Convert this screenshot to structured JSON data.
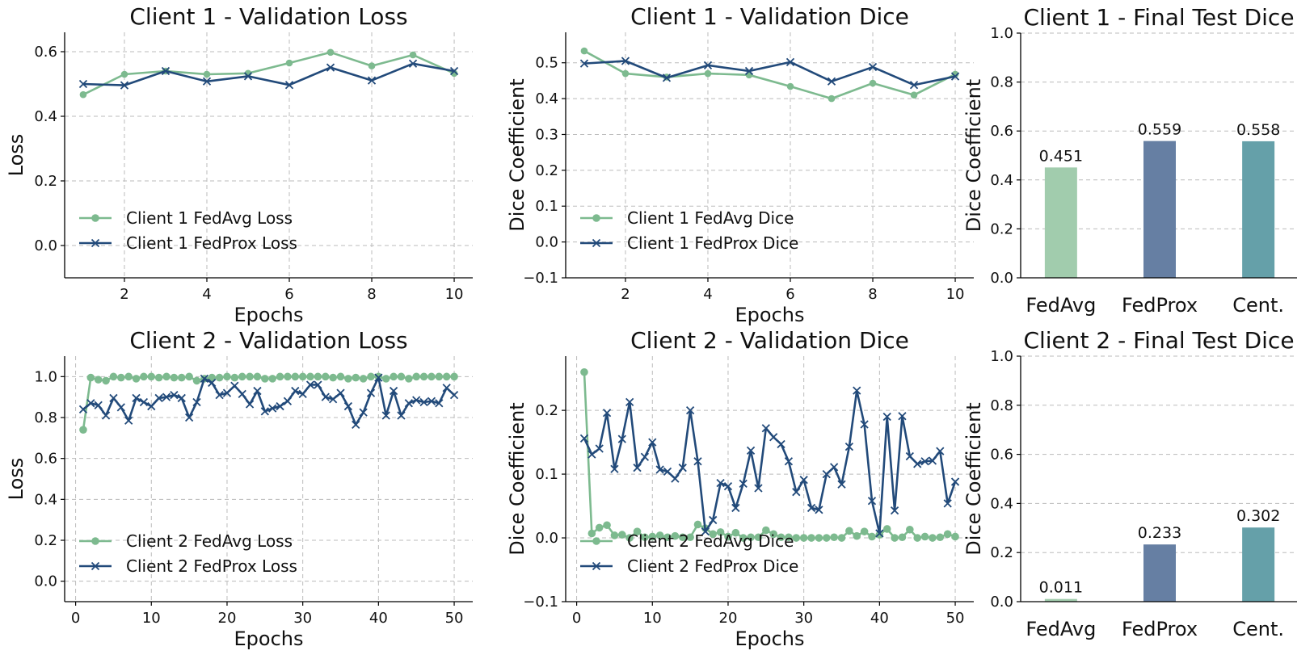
{
  "chart_data": [
    {
      "type": "line",
      "title": "Client 1 - Validation Loss",
      "xlabel": "Epochs",
      "ylabel": "Loss",
      "xlim": [
        0.55,
        10.45
      ],
      "ylim": [
        -0.1,
        0.66
      ],
      "xticks": [
        2,
        4,
        6,
        8,
        10
      ],
      "yticks": [
        0.0,
        0.2,
        0.4,
        0.6
      ],
      "ytick_decimals": 1,
      "legend_position": "lower-left",
      "x": [
        1,
        2,
        3,
        4,
        5,
        6,
        7,
        8,
        9,
        10
      ],
      "series": [
        {
          "name": "Client 1 FedAvg Loss",
          "color": "#7dba8f",
          "marker": "circle",
          "values": [
            0.467,
            0.53,
            0.54,
            0.53,
            0.533,
            0.565,
            0.598,
            0.556,
            0.59,
            0.533
          ]
        },
        {
          "name": "Client 1 FedProx Loss",
          "color": "#224a7a",
          "marker": "x",
          "values": [
            0.5,
            0.496,
            0.54,
            0.508,
            0.524,
            0.497,
            0.551,
            0.511,
            0.563,
            0.54
          ]
        }
      ]
    },
    {
      "type": "line",
      "title": "Client 1 - Validation Dice",
      "xlabel": "Epochs",
      "ylabel": "Dice Coefficient",
      "xlim": [
        0.55,
        10.45
      ],
      "ylim": [
        -0.1,
        0.585
      ],
      "xticks": [
        2,
        4,
        6,
        8,
        10
      ],
      "yticks": [
        -0.1,
        0.0,
        0.1,
        0.2,
        0.3,
        0.4,
        0.5
      ],
      "ytick_decimals": 1,
      "legend_position": "lower-left",
      "x": [
        1,
        2,
        3,
        4,
        5,
        6,
        7,
        8,
        9,
        10
      ],
      "series": [
        {
          "name": "Client 1 FedAvg Dice",
          "color": "#7dba8f",
          "marker": "circle",
          "values": [
            0.533,
            0.47,
            0.46,
            0.47,
            0.466,
            0.434,
            0.4,
            0.443,
            0.41,
            0.468
          ]
        },
        {
          "name": "Client 1 FedProx Dice",
          "color": "#224a7a",
          "marker": "x",
          "values": [
            0.498,
            0.505,
            0.458,
            0.493,
            0.477,
            0.502,
            0.448,
            0.488,
            0.438,
            0.462
          ]
        }
      ]
    },
    {
      "type": "bar",
      "title": "Client 1 - Final Test Dice",
      "xlabel": "",
      "ylabel": "Dice Coefficient",
      "ylim": [
        0,
        1.0
      ],
      "yticks": [
        0.0,
        0.2,
        0.4,
        0.6,
        0.8,
        1.0
      ],
      "ytick_decimals": 1,
      "categories": [
        "FedAvg",
        "FedProx",
        "Cent."
      ],
      "values": [
        0.451,
        0.559,
        0.558
      ],
      "value_labels": [
        "0.451",
        "0.559",
        "0.558"
      ],
      "colors": [
        "#a1ccad",
        "#667fa3",
        "#65a0a9"
      ]
    },
    {
      "type": "line",
      "title": "Client 2 - Validation Loss",
      "xlabel": "Epochs",
      "ylabel": "Loss",
      "xlim": [
        -1.45,
        52.45
      ],
      "ylim": [
        -0.1,
        1.1
      ],
      "xticks": [
        0,
        10,
        20,
        30,
        40,
        50
      ],
      "yticks": [
        0.0,
        0.2,
        0.4,
        0.6,
        0.8,
        1.0
      ],
      "ytick_decimals": 1,
      "legend_position": "lower-left",
      "x": [
        1,
        2,
        3,
        4,
        5,
        6,
        7,
        8,
        9,
        10,
        11,
        12,
        13,
        14,
        15,
        16,
        17,
        18,
        19,
        20,
        21,
        22,
        23,
        24,
        25,
        26,
        27,
        28,
        29,
        30,
        31,
        32,
        33,
        34,
        35,
        36,
        37,
        38,
        39,
        40,
        41,
        42,
        43,
        44,
        45,
        46,
        47,
        48,
        49,
        50
      ],
      "series": [
        {
          "name": "Client 2 FedAvg Loss",
          "color": "#7dba8f",
          "marker": "circle",
          "values": [
            0.74,
            0.995,
            0.985,
            0.98,
            1.0,
            0.995,
            1.0,
            0.99,
            1.0,
            1.0,
            0.995,
            1.0,
            0.995,
            0.995,
            1.0,
            0.98,
            0.99,
            0.995,
            0.995,
            1.0,
            0.995,
            1.0,
            1.0,
            1.0,
            0.99,
            0.99,
            1.0,
            1.0,
            1.0,
            1.0,
            1.0,
            1.0,
            1.0,
            0.995,
            1.0,
            0.99,
            0.995,
            0.99,
            1.0,
            1.0,
            0.99,
            1.0,
            1.0,
            0.99,
            1.0,
            1.0,
            1.0,
            1.0,
            1.0,
            1.0
          ]
        },
        {
          "name": "Client 2 FedProx Loss",
          "color": "#224a7a",
          "marker": "x",
          "values": [
            0.84,
            0.87,
            0.86,
            0.81,
            0.895,
            0.85,
            0.785,
            0.895,
            0.875,
            0.855,
            0.895,
            0.9,
            0.91,
            0.895,
            0.8,
            0.875,
            0.99,
            0.97,
            0.91,
            0.92,
            0.955,
            0.915,
            0.865,
            0.93,
            0.83,
            0.845,
            0.855,
            0.88,
            0.93,
            0.915,
            0.96,
            0.96,
            0.9,
            0.89,
            0.92,
            0.855,
            0.765,
            0.825,
            0.92,
            0.995,
            0.81,
            0.93,
            0.81,
            0.87,
            0.885,
            0.875,
            0.88,
            0.87,
            0.945,
            0.91
          ]
        }
      ]
    },
    {
      "type": "line",
      "title": "Client 2 - Validation Dice",
      "xlabel": "Epochs",
      "ylabel": "Dice Coefficient",
      "xlim": [
        -1.45,
        52.45
      ],
      "ylim": [
        -0.1,
        0.285
      ],
      "xticks": [
        0,
        10,
        20,
        30,
        40,
        50
      ],
      "yticks": [
        -0.1,
        0.0,
        0.1,
        0.2
      ],
      "ytick_decimals": 1,
      "legend_position": "lower-left",
      "x": [
        1,
        2,
        3,
        4,
        5,
        6,
        7,
        8,
        9,
        10,
        11,
        12,
        13,
        14,
        15,
        16,
        17,
        18,
        19,
        20,
        21,
        22,
        23,
        24,
        25,
        26,
        27,
        28,
        29,
        30,
        31,
        32,
        33,
        34,
        35,
        36,
        37,
        38,
        39,
        40,
        41,
        42,
        43,
        44,
        45,
        46,
        47,
        48,
        49,
        50
      ],
      "series": [
        {
          "name": "Client 2 FedAvg Dice",
          "color": "#7dba8f",
          "marker": "circle",
          "values": [
            0.26,
            0.007,
            0.016,
            0.02,
            0.004,
            0.005,
            0.0,
            0.01,
            0.001,
            0.002,
            0.004,
            0.001,
            0.003,
            0.001,
            0.001,
            0.021,
            0.015,
            0.006,
            0.009,
            0.002,
            0.008,
            0.0,
            0.001,
            0.001,
            0.012,
            0.006,
            0.001,
            0.001,
            0.0,
            0.0,
            0.0,
            0.0,
            0.0,
            0.001,
            0.0,
            0.011,
            0.003,
            0.01,
            0.002,
            0.005,
            0.014,
            0.0,
            0.001,
            0.013,
            0.0,
            0.002,
            0.0,
            0.001,
            0.006,
            0.002
          ]
        },
        {
          "name": "Client 2 FedProx Dice",
          "color": "#224a7a",
          "marker": "x",
          "values": [
            0.156,
            0.131,
            0.14,
            0.196,
            0.108,
            0.155,
            0.213,
            0.11,
            0.127,
            0.15,
            0.107,
            0.104,
            0.093,
            0.11,
            0.2,
            0.12,
            0.01,
            0.028,
            0.086,
            0.081,
            0.047,
            0.085,
            0.137,
            0.078,
            0.172,
            0.158,
            0.147,
            0.12,
            0.072,
            0.091,
            0.047,
            0.044,
            0.1,
            0.111,
            0.084,
            0.143,
            0.231,
            0.178,
            0.058,
            0.007,
            0.19,
            0.043,
            0.191,
            0.128,
            0.116,
            0.12,
            0.121,
            0.136,
            0.054,
            0.088
          ]
        }
      ]
    },
    {
      "type": "bar",
      "title": "Client 2 - Final Test Dice",
      "xlabel": "",
      "ylabel": "Dice Coefficient",
      "ylim": [
        0,
        1.0
      ],
      "yticks": [
        0.0,
        0.2,
        0.4,
        0.6,
        0.8,
        1.0
      ],
      "ytick_decimals": 1,
      "categories": [
        "FedAvg",
        "FedProx",
        "Cent."
      ],
      "values": [
        0.011,
        0.233,
        0.302
      ],
      "value_labels": [
        "0.011",
        "0.233",
        "0.302"
      ],
      "colors": [
        "#a1ccad",
        "#667fa3",
        "#65a0a9"
      ]
    }
  ]
}
